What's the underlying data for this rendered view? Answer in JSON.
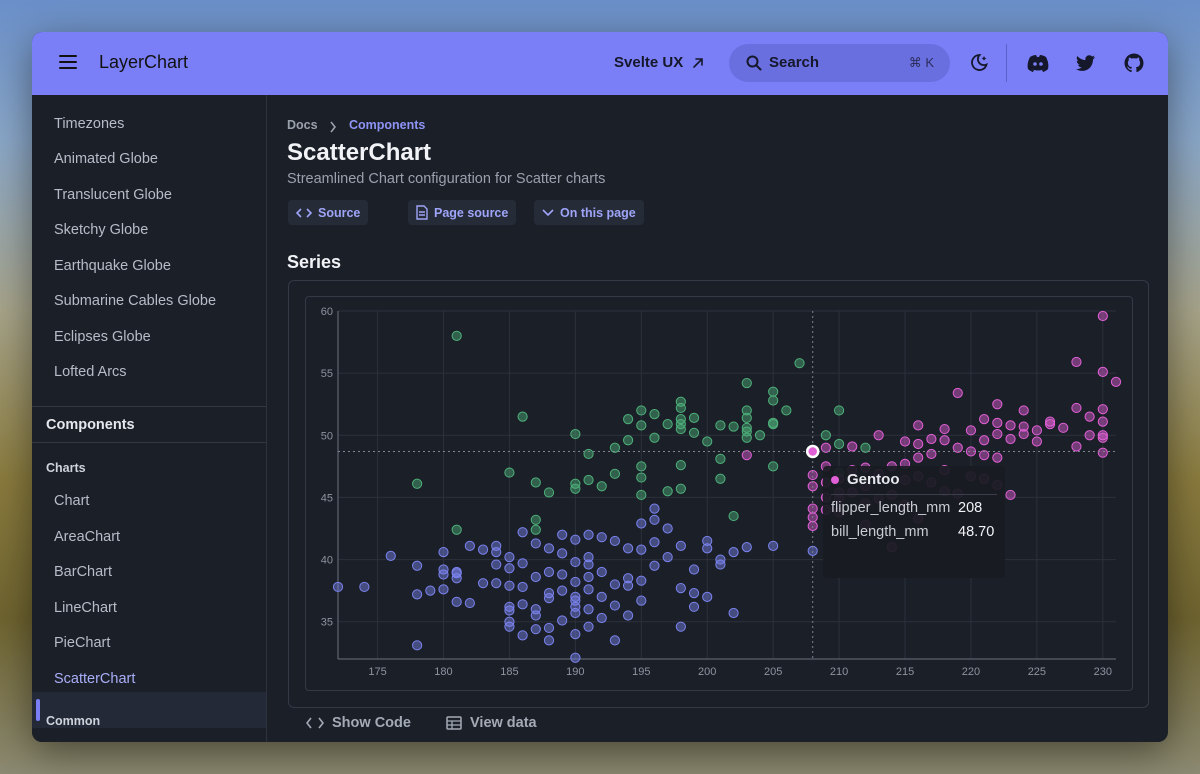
{
  "header": {
    "title": "LayerChart",
    "svelte_ux_label": "Svelte UX",
    "search_label": "Search",
    "search_shortcut": "⌘ K"
  },
  "sidebar": {
    "items_top": [
      "Timezones",
      "Animated Globe",
      "Translucent Globe",
      "Sketchy Globe",
      "Earthquake Globe",
      "Submarine Cables Globe",
      "Eclipses Globe",
      "Lofted Arcs"
    ],
    "section": "Components",
    "group_charts": "Charts",
    "chart_items": [
      "Chart",
      "AreaChart",
      "BarChart",
      "LineChart",
      "PieChart",
      "ScatterChart"
    ],
    "active_item": "ScatterChart",
    "group_common": "Common"
  },
  "main": {
    "breadcrumb_root": "Docs",
    "breadcrumb_current": "Components",
    "title": "ScatterChart",
    "description": "Streamlined Chart configuration for Scatter charts",
    "buttons": {
      "source": "Source",
      "page_source": "Page source",
      "on_this_page": "On this page"
    },
    "section_title": "Series",
    "show_code": "Show Code",
    "view_data": "View data"
  },
  "tooltip": {
    "series": "Gentoo",
    "x_label": "flipper_length_mm",
    "x_value": "208",
    "y_label": "bill_length_mm",
    "y_value": "48.70"
  },
  "colors": {
    "accent": "#7a7ff7",
    "adelie": "#7b83ee",
    "chinstrap": "#4eb07a",
    "gentoo": "#e260d7"
  },
  "chart_data": {
    "type": "scatter",
    "xlim": [
      172,
      231
    ],
    "ylim": [
      32,
      60
    ],
    "x_ticks": [
      175,
      180,
      185,
      190,
      195,
      200,
      205,
      210,
      215,
      220,
      225,
      230
    ],
    "y_ticks": [
      35,
      40,
      45,
      50,
      55,
      60
    ],
    "grid": true,
    "crosshair": {
      "x": 208,
      "y": 48.7
    },
    "series": [
      {
        "color": "#7b83ee",
        "points": [
          [
            172,
            37.8
          ],
          [
            174,
            37.8
          ],
          [
            176,
            40.3
          ],
          [
            178,
            39.5
          ],
          [
            178,
            37.2
          ],
          [
            178,
            33.1
          ],
          [
            179,
            37.5
          ],
          [
            180,
            40.6
          ],
          [
            180,
            38.8
          ],
          [
            180,
            37.6
          ],
          [
            180,
            39.2
          ],
          [
            181,
            39.0
          ],
          [
            181,
            38.5
          ],
          [
            181,
            36.6
          ],
          [
            181,
            38.9
          ],
          [
            182,
            41.1
          ],
          [
            182,
            36.5
          ],
          [
            183,
            38.1
          ],
          [
            183,
            40.8
          ],
          [
            184,
            40.6
          ],
          [
            184,
            41.1
          ],
          [
            184,
            38.1
          ],
          [
            184,
            39.6
          ],
          [
            185,
            40.2
          ],
          [
            185,
            35.9
          ],
          [
            185,
            37.9
          ],
          [
            185,
            39.3
          ],
          [
            185,
            36.2
          ],
          [
            185,
            34.6
          ],
          [
            185,
            35.0
          ],
          [
            186,
            42.2
          ],
          [
            186,
            39.7
          ],
          [
            186,
            37.8
          ],
          [
            186,
            36.4
          ],
          [
            186,
            33.9
          ],
          [
            187,
            38.6
          ],
          [
            187,
            41.3
          ],
          [
            187,
            36.0
          ],
          [
            187,
            35.5
          ],
          [
            187,
            34.4
          ],
          [
            188,
            40.9
          ],
          [
            188,
            37.3
          ],
          [
            188,
            39.0
          ],
          [
            188,
            36.9
          ],
          [
            188,
            34.5
          ],
          [
            188,
            33.5
          ],
          [
            189,
            42.0
          ],
          [
            189,
            38.8
          ],
          [
            189,
            40.5
          ],
          [
            189,
            37.5
          ],
          [
            189,
            35.1
          ],
          [
            190,
            41.6
          ],
          [
            190,
            39.8
          ],
          [
            190,
            38.2
          ],
          [
            190,
            37.0
          ],
          [
            190,
            36.7
          ],
          [
            190,
            36.2
          ],
          [
            190,
            35.7
          ],
          [
            190,
            34.0
          ],
          [
            190,
            32.1
          ],
          [
            191,
            42.0
          ],
          [
            191,
            40.2
          ],
          [
            191,
            39.6
          ],
          [
            191,
            38.6
          ],
          [
            191,
            37.6
          ],
          [
            191,
            36.0
          ],
          [
            191,
            34.6
          ],
          [
            192,
            41.8
          ],
          [
            192,
            39.0
          ],
          [
            192,
            37.0
          ],
          [
            192,
            35.3
          ],
          [
            193,
            41.5
          ],
          [
            193,
            38.0
          ],
          [
            193,
            36.3
          ],
          [
            193,
            33.5
          ],
          [
            194,
            40.9
          ],
          [
            194,
            38.5
          ],
          [
            194,
            37.9
          ],
          [
            194,
            35.5
          ],
          [
            195,
            42.9
          ],
          [
            195,
            40.8
          ],
          [
            195,
            38.3
          ],
          [
            195,
            36.7
          ],
          [
            196,
            44.1
          ],
          [
            196,
            43.2
          ],
          [
            196,
            41.4
          ],
          [
            196,
            39.5
          ],
          [
            197,
            42.5
          ],
          [
            197,
            40.2
          ],
          [
            198,
            41.1
          ],
          [
            198,
            37.7
          ],
          [
            198,
            34.6
          ],
          [
            199,
            39.2
          ],
          [
            199,
            37.3
          ],
          [
            199,
            36.2
          ],
          [
            200,
            41.5
          ],
          [
            200,
            40.9
          ],
          [
            200,
            37.0
          ],
          [
            201,
            39.6
          ],
          [
            201,
            40.0
          ],
          [
            202,
            40.6
          ],
          [
            202,
            35.7
          ],
          [
            203,
            41.0
          ],
          [
            205,
            41.1
          ],
          [
            208,
            40.7
          ]
        ]
      },
      {
        "color": "#4eb07a",
        "points": [
          [
            178,
            46.1
          ],
          [
            181,
            42.4
          ],
          [
            181,
            58.0
          ],
          [
            185,
            47.0
          ],
          [
            186,
            51.5
          ],
          [
            187,
            46.2
          ],
          [
            187,
            43.2
          ],
          [
            187,
            42.4
          ],
          [
            188,
            45.4
          ],
          [
            190,
            50.1
          ],
          [
            190,
            46.1
          ],
          [
            190,
            45.7
          ],
          [
            191,
            48.5
          ],
          [
            191,
            46.4
          ],
          [
            192,
            45.9
          ],
          [
            193,
            46.9
          ],
          [
            193,
            49.0
          ],
          [
            194,
            49.6
          ],
          [
            194,
            51.3
          ],
          [
            195,
            52.0
          ],
          [
            195,
            50.8
          ],
          [
            195,
            46.6
          ],
          [
            195,
            47.5
          ],
          [
            195,
            45.2
          ],
          [
            196,
            51.7
          ],
          [
            196,
            49.8
          ],
          [
            197,
            50.9
          ],
          [
            197,
            45.5
          ],
          [
            198,
            52.7
          ],
          [
            198,
            52.2
          ],
          [
            198,
            51.3
          ],
          [
            198,
            50.5
          ],
          [
            198,
            50.9
          ],
          [
            198,
            47.6
          ],
          [
            198,
            45.7
          ],
          [
            199,
            51.4
          ],
          [
            199,
            50.2
          ],
          [
            200,
            49.5
          ],
          [
            201,
            48.1
          ],
          [
            201,
            50.8
          ],
          [
            201,
            46.5
          ],
          [
            202,
            50.7
          ],
          [
            203,
            50.6
          ],
          [
            203,
            49.8
          ],
          [
            203,
            54.2
          ],
          [
            203,
            51.4
          ],
          [
            203,
            52.0
          ],
          [
            203,
            50.3
          ],
          [
            205,
            53.5
          ],
          [
            205,
            52.8
          ],
          [
            205,
            51.0
          ],
          [
            205,
            50.9
          ],
          [
            205,
            47.5
          ],
          [
            206,
            52.0
          ],
          [
            207,
            55.8
          ],
          [
            209,
            50.0
          ],
          [
            210,
            52.0
          ],
          [
            210,
            49.3
          ],
          [
            210,
            47.0
          ],
          [
            212,
            49.0
          ],
          [
            202,
            43.5
          ],
          [
            204,
            50.0
          ]
        ]
      },
      {
        "color": "#e260d7",
        "points": [
          [
            203,
            48.4
          ],
          [
            208,
            46.8
          ],
          [
            208,
            45.9
          ],
          [
            208,
            44.1
          ],
          [
            208,
            43.4
          ],
          [
            208,
            42.7
          ],
          [
            208,
            48.7
          ],
          [
            209,
            49.0
          ],
          [
            209,
            47.5
          ],
          [
            209,
            46.2
          ],
          [
            209,
            45.0
          ],
          [
            209,
            44.0
          ],
          [
            210,
            46.5
          ],
          [
            210,
            45.4
          ],
          [
            210,
            44.9
          ],
          [
            210,
            43.8
          ],
          [
            211,
            49.1
          ],
          [
            211,
            47.2
          ],
          [
            211,
            45.4
          ],
          [
            212,
            47.4
          ],
          [
            212,
            45.9
          ],
          [
            212,
            44.5
          ],
          [
            212,
            42.8
          ],
          [
            213,
            50.0
          ],
          [
            213,
            46.9
          ],
          [
            213,
            44.9
          ],
          [
            214,
            47.5
          ],
          [
            214,
            45.2
          ],
          [
            214,
            41.0
          ],
          [
            215,
            49.5
          ],
          [
            215,
            47.7
          ],
          [
            215,
            46.4
          ],
          [
            215,
            44.4
          ],
          [
            216,
            50.8
          ],
          [
            216,
            49.3
          ],
          [
            216,
            48.2
          ],
          [
            216,
            46.7
          ],
          [
            216,
            43.3
          ],
          [
            217,
            49.7
          ],
          [
            217,
            48.5
          ],
          [
            217,
            46.2
          ],
          [
            218,
            50.5
          ],
          [
            218,
            49.6
          ],
          [
            218,
            47.2
          ],
          [
            218,
            45.5
          ],
          [
            219,
            53.4
          ],
          [
            219,
            49.0
          ],
          [
            219,
            45.3
          ],
          [
            220,
            50.4
          ],
          [
            220,
            48.7
          ],
          [
            220,
            46.7
          ],
          [
            221,
            51.3
          ],
          [
            221,
            49.6
          ],
          [
            221,
            48.4
          ],
          [
            221,
            46.5
          ],
          [
            222,
            52.5
          ],
          [
            222,
            50.1
          ],
          [
            222,
            48.2
          ],
          [
            222,
            46.0
          ],
          [
            223,
            50.8
          ],
          [
            223,
            49.7
          ],
          [
            223,
            45.2
          ],
          [
            224,
            50.1
          ],
          [
            224,
            50.7
          ],
          [
            225,
            50.4
          ],
          [
            225,
            49.5
          ],
          [
            226,
            51.1
          ],
          [
            226,
            50.9
          ],
          [
            227,
            50.6
          ],
          [
            228,
            55.9
          ],
          [
            228,
            52.2
          ],
          [
            228,
            49.1
          ],
          [
            229,
            50.0
          ],
          [
            229,
            51.5
          ],
          [
            230,
            59.6
          ],
          [
            230,
            55.1
          ],
          [
            230,
            52.1
          ],
          [
            230,
            51.1
          ],
          [
            230,
            50.0
          ],
          [
            230,
            49.8
          ],
          [
            230,
            48.6
          ],
          [
            231,
            54.3
          ],
          [
            224,
            52.0
          ],
          [
            222,
            51.0
          ]
        ]
      }
    ]
  }
}
